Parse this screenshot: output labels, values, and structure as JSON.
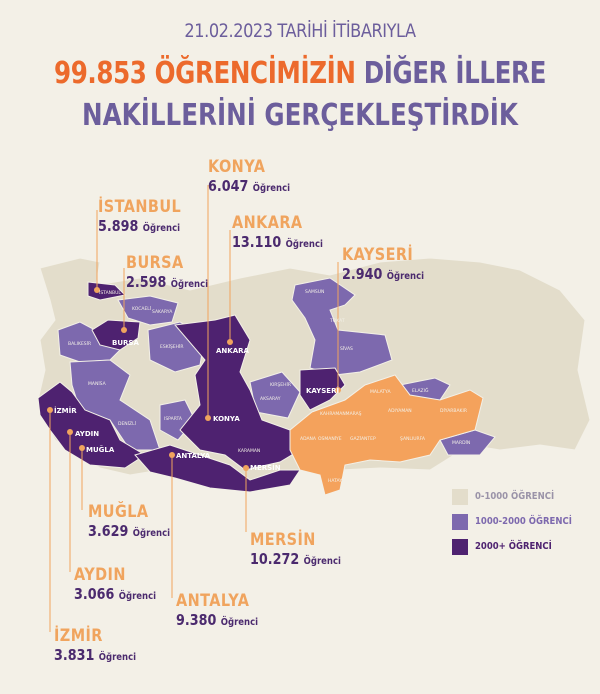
{
  "header": {
    "date_line": "21.02.2023 TARİHİ İTİBARIYLA",
    "headline_count": "99.853",
    "headline_orange": "ÖĞRENCİMİZİN",
    "headline_purple": "DİĞER İLLERE",
    "headline_line2": "NAKİLLERİNİ GERÇEKLEŞTİRDİK"
  },
  "colors": {
    "background": "#f3f0e7",
    "range_0_1000": "#e3ddcb",
    "range_1000_2000": "#7d69ae",
    "range_2000_plus": "#4e2270",
    "origin_provinces": "#f4a25c",
    "headline_orange": "#ec6a2c",
    "headline_purple": "#6c5e9c"
  },
  "unit": "Öğrenci",
  "callouts": [
    {
      "name": "KONYA",
      "value": "6.047"
    },
    {
      "name": "İSTANBUL",
      "value": "5.898"
    },
    {
      "name": "ANKARA",
      "value": "13.110"
    },
    {
      "name": "BURSA",
      "value": "2.598"
    },
    {
      "name": "KAYSERİ",
      "value": "2.940"
    },
    {
      "name": "MUĞLA",
      "value": "3.629"
    },
    {
      "name": "MERSİN",
      "value": "10.272"
    },
    {
      "name": "AYDIN",
      "value": "3.066"
    },
    {
      "name": "ANTALYA",
      "value": "9.380"
    },
    {
      "name": "İZMİR",
      "value": "3.831"
    }
  ],
  "map_labels": [
    "İSTANBUL",
    "KOCAELİ",
    "SAKARYA",
    "BURSA",
    "BALIKESİR",
    "MANİSA",
    "İZMİR",
    "AYDIN",
    "MUĞLA",
    "DENİZLİ",
    "ESKİŞEHİR",
    "ANKARA",
    "KONYA",
    "ISPARTA",
    "ANTALYA",
    "KARAMAN",
    "MERSİN",
    "AKSARAY",
    "KIRŞEHİR",
    "KAYSERİ",
    "SAMSUN",
    "TOKAT",
    "SİVAS",
    "MALATYA",
    "ELAZIĞ",
    "KAHRAMANMARAŞ",
    "ADIYAMAN",
    "DİYARBAKIR",
    "ŞANLIURFA",
    "GAZİANTEP",
    "OSMANİYE",
    "ADANA",
    "HATAY",
    "MARDİN"
  ],
  "legend": [
    {
      "label": "0-1000 ÖĞRENCİ",
      "color": "#e3ddcb"
    },
    {
      "label": "1000-2000 ÖĞRENCİ",
      "color": "#7d69ae"
    },
    {
      "label": "2000+ ÖĞRENCİ",
      "color": "#4e2270"
    }
  ]
}
